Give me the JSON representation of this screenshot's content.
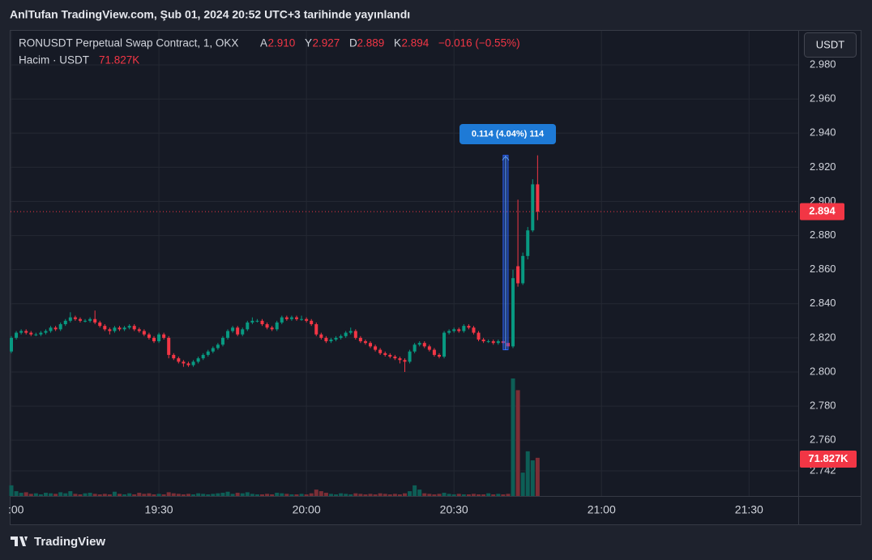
{
  "header": {
    "published": "AnlTufan TradingView.com, Şub 01, 2024 20:52 UTC+3 tarihinde yayınlandı"
  },
  "footer": {
    "brand": "TradingView"
  },
  "chart_data": {
    "type": "candlestick",
    "title": "RONUSDT Perpetual Swap Contract, 1, OKX",
    "legend": [
      {
        "key": "A",
        "value": "2.910"
      },
      {
        "key": "Y",
        "value": "2.927"
      },
      {
        "key": "D",
        "value": "2.889"
      },
      {
        "key": "K",
        "value": "2.894"
      }
    ],
    "change": "−0.016 (−0.55%)",
    "volume_title": "Hacim · USDT",
    "price_scale_unit": "USDT",
    "colors": {
      "up": "#089981",
      "down": "#f23645",
      "up_volume": "#0d5e56",
      "down_volume": "#7c2e36"
    },
    "grid": true,
    "xlim": [
      "19:00",
      "21:40"
    ],
    "xticks": [
      {
        "value": "19:00",
        "label": ":00"
      },
      "19:30",
      "20:00",
      "20:30",
      "21:00",
      "21:30"
    ],
    "ylim": [
      2.7273,
      3.0
    ],
    "yticks": [
      {
        "value": 2.742,
        "label": "2.742"
      },
      {
        "value": 2.76,
        "label": "2.760"
      },
      {
        "value": 2.78,
        "label": "2.780"
      },
      {
        "value": 2.8,
        "label": "2.800"
      },
      {
        "value": 2.82,
        "label": "2.820"
      },
      {
        "value": 2.84,
        "label": "2.840"
      },
      {
        "value": 2.86,
        "label": "2.860"
      },
      {
        "value": 2.88,
        "label": "2.880"
      },
      {
        "value": 2.9,
        "label": "2.900"
      },
      {
        "value": 2.92,
        "label": "2.920"
      },
      {
        "value": 2.94,
        "label": "2.940"
      },
      {
        "value": 2.96,
        "label": "2.960"
      },
      {
        "value": 2.98,
        "label": "2.980"
      }
    ],
    "last_price": {
      "value": 2.894,
      "label": "2.894"
    },
    "volume_label": {
      "value": 71827,
      "label": "71.827K"
    },
    "measure": {
      "label": "0.114 (4.04%) 114",
      "from": 2.813,
      "to": 2.927,
      "x": [
        "20:40",
        "20:41"
      ]
    },
    "x": [
      "19:00",
      "19:01",
      "19:02",
      "19:03",
      "19:04",
      "19:05",
      "19:06",
      "19:07",
      "19:08",
      "19:09",
      "19:10",
      "19:11",
      "19:12",
      "19:13",
      "19:14",
      "19:15",
      "19:16",
      "19:17",
      "19:18",
      "19:19",
      "19:20",
      "19:21",
      "19:22",
      "19:23",
      "19:24",
      "19:25",
      "19:26",
      "19:27",
      "19:28",
      "19:29",
      "19:30",
      "19:31",
      "19:32",
      "19:33",
      "19:34",
      "19:35",
      "19:36",
      "19:37",
      "19:38",
      "19:39",
      "19:40",
      "19:41",
      "19:42",
      "19:43",
      "19:44",
      "19:45",
      "19:46",
      "19:47",
      "19:48",
      "19:49",
      "19:50",
      "19:51",
      "19:52",
      "19:53",
      "19:54",
      "19:55",
      "19:56",
      "19:57",
      "19:58",
      "19:59",
      "20:00",
      "20:01",
      "20:02",
      "20:03",
      "20:04",
      "20:05",
      "20:06",
      "20:07",
      "20:08",
      "20:09",
      "20:10",
      "20:11",
      "20:12",
      "20:13",
      "20:14",
      "20:15",
      "20:16",
      "20:17",
      "20:18",
      "20:19",
      "20:20",
      "20:21",
      "20:22",
      "20:23",
      "20:24",
      "20:25",
      "20:26",
      "20:27",
      "20:28",
      "20:29",
      "20:30",
      "20:31",
      "20:32",
      "20:33",
      "20:34",
      "20:35",
      "20:36",
      "20:37",
      "20:38",
      "20:39",
      "20:40",
      "20:41",
      "20:42",
      "20:43",
      "20:44",
      "20:45",
      "20:46",
      "20:47"
    ],
    "open": [
      2.812,
      2.82,
      2.823,
      2.824,
      2.823,
      2.822,
      2.822,
      2.823,
      2.824,
      2.826,
      2.825,
      2.828,
      2.83,
      2.832,
      2.831,
      2.83,
      2.83,
      2.831,
      2.829,
      2.827,
      2.825,
      2.824,
      2.826,
      2.825,
      2.826,
      2.827,
      2.825,
      2.824,
      2.822,
      2.82,
      2.818,
      2.822,
      2.82,
      2.81,
      2.808,
      2.806,
      2.805,
      2.804,
      2.806,
      2.808,
      2.81,
      2.812,
      2.814,
      2.816,
      2.82,
      2.824,
      2.826,
      2.822,
      2.825,
      2.829,
      2.83,
      2.83,
      2.828,
      2.826,
      2.825,
      2.829,
      2.832,
      2.831,
      2.832,
      2.831,
      2.831,
      2.83,
      2.828,
      2.822,
      2.82,
      2.818,
      2.819,
      2.82,
      2.821,
      2.823,
      2.824,
      2.82,
      2.818,
      2.817,
      2.815,
      2.813,
      2.811,
      2.81,
      2.809,
      2.808,
      2.807,
      2.806,
      2.812,
      2.816,
      2.817,
      2.815,
      2.813,
      2.81,
      2.809,
      2.823,
      2.824,
      2.825,
      2.824,
      2.827,
      2.826,
      2.823,
      2.819,
      2.818,
      2.818,
      2.817,
      2.818,
      2.817,
      2.815,
      2.862,
      2.852,
      2.868,
      2.883,
      2.91
    ],
    "high": [
      2.821,
      2.824,
      2.825,
      2.825,
      2.824,
      2.823,
      2.824,
      2.825,
      2.827,
      2.827,
      2.829,
      2.831,
      2.835,
      2.833,
      2.832,
      2.831,
      2.832,
      2.836,
      2.83,
      2.828,
      2.826,
      2.827,
      2.827,
      2.827,
      2.828,
      2.828,
      2.826,
      2.825,
      2.823,
      2.821,
      2.823,
      2.823,
      2.821,
      2.811,
      2.809,
      2.807,
      2.806,
      2.807,
      2.809,
      2.811,
      2.813,
      2.815,
      2.817,
      2.821,
      2.825,
      2.827,
      2.827,
      2.826,
      2.83,
      2.832,
      2.831,
      2.831,
      2.829,
      2.827,
      2.83,
      2.833,
      2.833,
      2.833,
      2.833,
      2.833,
      2.832,
      2.831,
      2.829,
      2.823,
      2.821,
      2.82,
      2.821,
      2.822,
      2.824,
      2.826,
      2.825,
      2.821,
      2.819,
      2.818,
      2.816,
      2.814,
      2.812,
      2.811,
      2.81,
      2.809,
      2.808,
      2.813,
      2.817,
      2.818,
      2.818,
      2.816,
      2.814,
      2.811,
      2.824,
      2.825,
      2.826,
      2.826,
      2.828,
      2.828,
      2.827,
      2.824,
      2.82,
      2.819,
      2.819,
      2.819,
      2.819,
      2.818,
      2.86,
      2.901,
      2.87,
      2.885,
      2.913,
      2.927
    ],
    "low": [
      2.811,
      2.819,
      2.822,
      2.822,
      2.821,
      2.821,
      2.821,
      2.822,
      2.823,
      2.824,
      2.824,
      2.827,
      2.829,
      2.83,
      2.829,
      2.829,
      2.829,
      2.828,
      2.826,
      2.824,
      2.822,
      2.823,
      2.824,
      2.824,
      2.825,
      2.824,
      2.823,
      2.821,
      2.819,
      2.817,
      2.817,
      2.819,
      2.808,
      2.807,
      2.805,
      2.803,
      2.803,
      2.803,
      2.805,
      2.807,
      2.809,
      2.811,
      2.813,
      2.815,
      2.819,
      2.823,
      2.821,
      2.821,
      2.824,
      2.828,
      2.829,
      2.827,
      2.825,
      2.824,
      2.824,
      2.828,
      2.83,
      2.83,
      2.83,
      2.83,
      2.829,
      2.827,
      2.821,
      2.819,
      2.817,
      2.817,
      2.818,
      2.819,
      2.82,
      2.822,
      2.819,
      2.817,
      2.816,
      2.814,
      2.812,
      2.81,
      2.809,
      2.808,
      2.807,
      2.805,
      2.8,
      2.805,
      2.811,
      2.815,
      2.814,
      2.812,
      2.809,
      2.808,
      2.808,
      2.822,
      2.823,
      2.823,
      2.823,
      2.825,
      2.822,
      2.818,
      2.817,
      2.817,
      2.816,
      2.816,
      2.816,
      2.814,
      2.814,
      2.85,
      2.851,
      2.866,
      2.882,
      2.889
    ],
    "close": [
      2.82,
      2.823,
      2.824,
      2.823,
      2.822,
      2.822,
      2.823,
      2.824,
      2.826,
      2.825,
      2.828,
      2.83,
      2.832,
      2.831,
      2.83,
      2.83,
      2.831,
      2.829,
      2.827,
      2.825,
      2.824,
      2.826,
      2.825,
      2.826,
      2.827,
      2.825,
      2.824,
      2.822,
      2.82,
      2.818,
      2.822,
      2.82,
      2.81,
      2.808,
      2.806,
      2.805,
      2.804,
      2.806,
      2.808,
      2.81,
      2.812,
      2.814,
      2.816,
      2.82,
      2.824,
      2.826,
      2.822,
      2.825,
      2.829,
      2.83,
      2.83,
      2.828,
      2.826,
      2.825,
      2.829,
      2.832,
      2.831,
      2.832,
      2.831,
      2.831,
      2.83,
      2.828,
      2.822,
      2.82,
      2.818,
      2.819,
      2.82,
      2.821,
      2.823,
      2.824,
      2.82,
      2.818,
      2.817,
      2.815,
      2.813,
      2.811,
      2.81,
      2.809,
      2.808,
      2.807,
      2.806,
      2.812,
      2.816,
      2.817,
      2.815,
      2.813,
      2.81,
      2.809,
      2.823,
      2.824,
      2.825,
      2.824,
      2.827,
      2.826,
      2.823,
      2.819,
      2.818,
      2.818,
      2.817,
      2.818,
      2.817,
      2.815,
      2.855,
      2.852,
      2.868,
      2.883,
      2.91,
      2.894
    ],
    "volume": [
      20000,
      9000,
      6000,
      7000,
      4000,
      5000,
      3000,
      6000,
      5000,
      4000,
      7000,
      5000,
      9000,
      4000,
      3000,
      5000,
      6000,
      4000,
      3000,
      4000,
      3000,
      8000,
      4000,
      3000,
      5000,
      3000,
      6000,
      4000,
      5000,
      3000,
      4000,
      3000,
      7000,
      5000,
      4000,
      3000,
      4000,
      3000,
      5000,
      4000,
      3000,
      4000,
      5000,
      6000,
      8000,
      4000,
      6000,
      5000,
      7000,
      4000,
      3000,
      3000,
      4000,
      3000,
      6000,
      5000,
      4000,
      3000,
      3000,
      4000,
      3000,
      5000,
      12000,
      9000,
      6000,
      4000,
      3000,
      5000,
      4000,
      3000,
      5000,
      4000,
      3000,
      4000,
      3000,
      5000,
      4000,
      3000,
      4000,
      3000,
      5000,
      9000,
      20000,
      12000,
      5000,
      4000,
      3000,
      4000,
      6000,
      4000,
      3000,
      4000,
      3000,
      3000,
      4000,
      3000,
      3000,
      5000,
      3000,
      4000,
      3000,
      4000,
      221000,
      199000,
      44000,
      84000,
      67000,
      71827
    ]
  }
}
